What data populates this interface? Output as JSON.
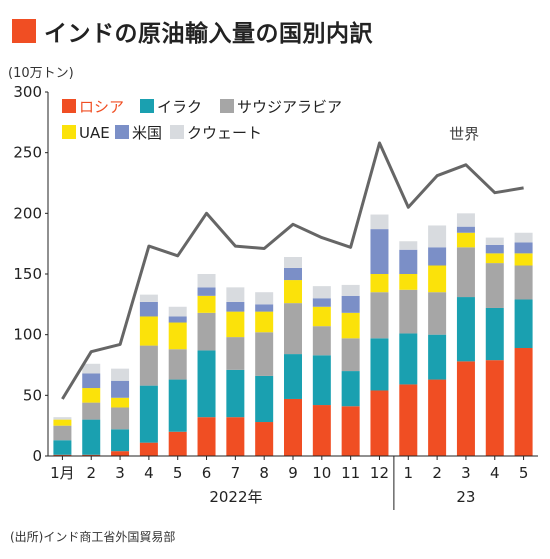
{
  "title": "インドの原油輸入量の国別内訳",
  "source": "(出所)インド商工省外国貿易部",
  "chart_data": {
    "type": "bar",
    "stacked": true,
    "unit": "(10万トン)",
    "ylim": [
      0,
      300
    ],
    "yticks": [
      0,
      50,
      100,
      150,
      200,
      250,
      300
    ],
    "grid": false,
    "legend_position": "top-left",
    "categories": [
      "1月",
      "2",
      "3",
      "4",
      "5",
      "6",
      "7",
      "8",
      "9",
      "10",
      "11",
      "12",
      "1",
      "2",
      "3",
      "4",
      "5"
    ],
    "year_labels": [
      "2022年",
      "23"
    ],
    "series": [
      {
        "name": "ロシア",
        "color": "#f04e23",
        "values": [
          1,
          1,
          4,
          11,
          20,
          32,
          32,
          28,
          47,
          42,
          41,
          54,
          59,
          63,
          78,
          79,
          89
        ]
      },
      {
        "name": "イラク",
        "color": "#1aa0b0",
        "values": [
          12,
          29,
          18,
          47,
          43,
          55,
          39,
          38,
          37,
          41,
          29,
          43,
          42,
          37,
          53,
          43,
          40
        ]
      },
      {
        "name": "サウジアラビア",
        "color": "#a6a6a6",
        "values": [
          12,
          14,
          18,
          33,
          25,
          31,
          27,
          36,
          42,
          24,
          27,
          38,
          36,
          35,
          41,
          37,
          28
        ]
      },
      {
        "name": "UAE",
        "color": "#fbe20a",
        "values": [
          5,
          12,
          8,
          24,
          22,
          14,
          21,
          17,
          19,
          16,
          21,
          15,
          13,
          22,
          12,
          8,
          10
        ]
      },
      {
        "name": "米国",
        "color": "#7b8fc7",
        "values": [
          0,
          12,
          14,
          12,
          5,
          7,
          8,
          6,
          10,
          7,
          14,
          37,
          20,
          15,
          5,
          7,
          9
        ]
      },
      {
        "name": "クウェート",
        "color": "#d8dbdf",
        "values": [
          2,
          8,
          10,
          6,
          8,
          11,
          12,
          10,
          9,
          10,
          9,
          12,
          7,
          18,
          11,
          6,
          8
        ]
      }
    ],
    "line": {
      "name": "世界",
      "color": "#666666",
      "values": [
        47,
        86,
        92,
        173,
        165,
        200,
        173,
        171,
        191,
        180,
        172,
        258,
        205,
        231,
        240,
        217,
        221
      ]
    }
  }
}
